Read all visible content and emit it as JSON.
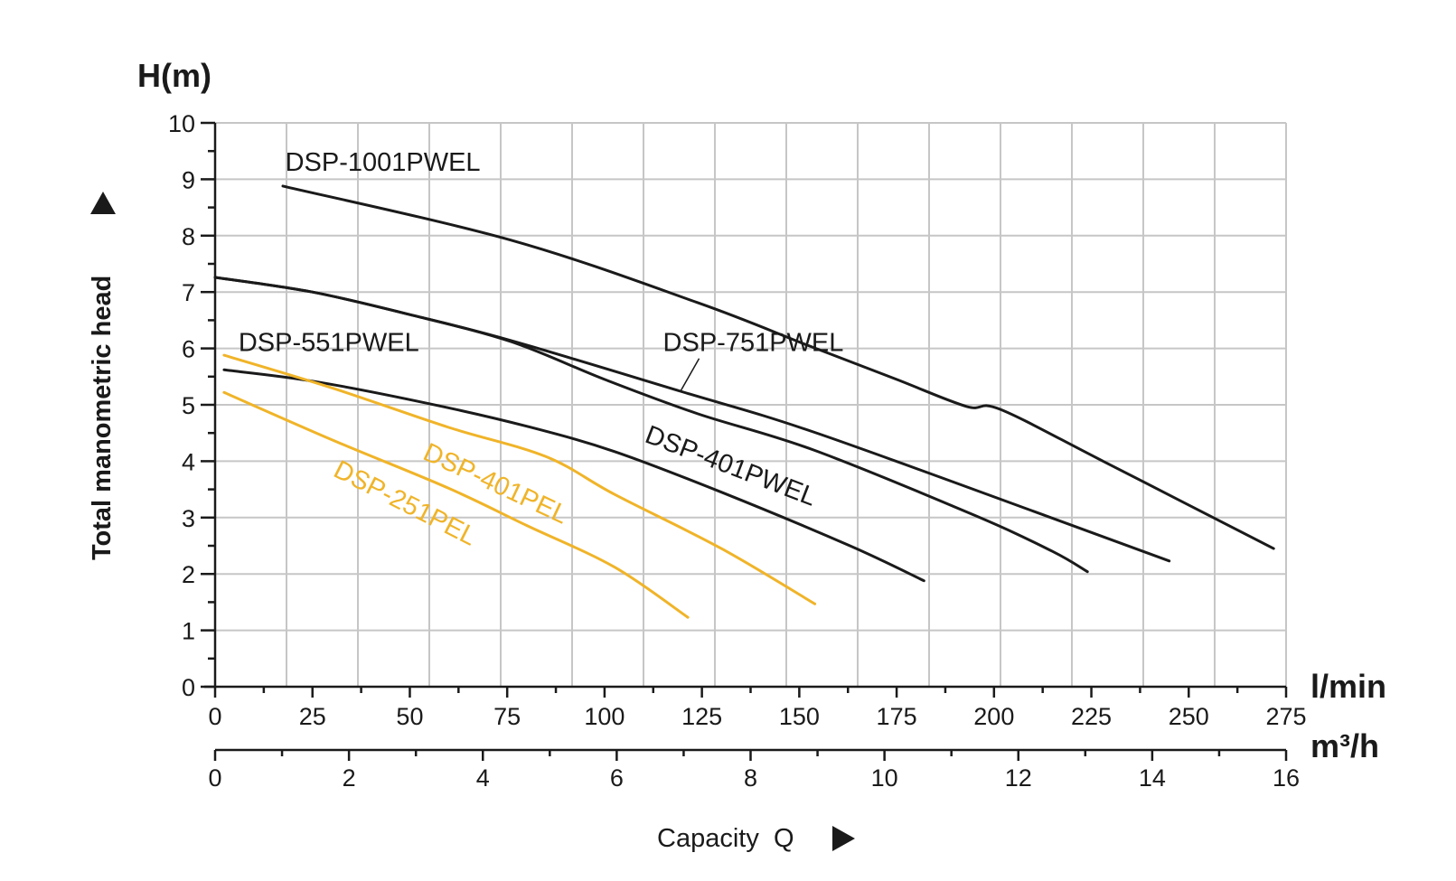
{
  "chart_data": {
    "type": "line",
    "title": "",
    "y_unit_label": "H(m)",
    "ylabel": "Total manometric head",
    "xlabel": "Capacity  Q",
    "x_unit_primary": "l/min",
    "x_unit_secondary": "m³/h",
    "xlim": [
      0,
      275
    ],
    "ylim": [
      0,
      10
    ],
    "x_secondary_lim": [
      0,
      16
    ],
    "grid": true,
    "grid_x_step": 18.333,
    "x_ticks": [
      "0",
      "25",
      "50",
      "75",
      "100",
      "125",
      "150",
      "175",
      "200",
      "225",
      "250",
      "275"
    ],
    "x_secondary_ticks": [
      "0",
      "2",
      "4",
      "6",
      "8",
      "10",
      "12",
      "14",
      "16"
    ],
    "y_ticks": [
      "0",
      "1",
      "2",
      "3",
      "4",
      "5",
      "6",
      "7",
      "8",
      "9",
      "10"
    ],
    "series": [
      {
        "name": "DSP-1001PWEL",
        "color": "#1a1a1a",
        "x": [
          17.4,
          76,
          124,
          152,
          175,
          193,
          201.6,
          228,
          271.8
        ],
        "y": [
          8.88,
          7.92,
          6.81,
          6.06,
          5.45,
          4.97,
          4.92,
          4.0,
          2.45
        ]
      },
      {
        "name": "DSP-751PWEL",
        "color": "#1a1a1a",
        "x": [
          0,
          25,
          50,
          76,
          119.5,
          153.6,
          213,
          245
        ],
        "y": [
          7.26,
          7.0,
          6.6,
          6.14,
          5.24,
          4.52,
          3.04,
          2.23
        ]
      },
      {
        "name": "DSP-551PWEL",
        "color": "#1a1a1a",
        "x": [
          0,
          25,
          50,
          76,
          100,
          124,
          153.6,
          195,
          215,
          224
        ],
        "y": [
          7.26,
          7.0,
          6.6,
          6.12,
          5.45,
          4.84,
          4.2,
          3.04,
          2.4,
          2.04
        ]
      },
      {
        "name": "DSP-401PWEL",
        "color": "#1a1a1a",
        "x": [
          2.3,
          25,
          55,
          80,
          102.6,
          130,
          163,
          182
        ],
        "y": [
          5.62,
          5.42,
          5.02,
          4.62,
          4.17,
          3.45,
          2.5,
          1.88
        ]
      },
      {
        "name": "DSP-401PEL",
        "color": "#F0B429",
        "x": [
          2.3,
          30,
          60,
          85,
          102.6,
          130,
          154
        ],
        "y": [
          5.88,
          5.3,
          4.6,
          4.08,
          3.41,
          2.45,
          1.47
        ]
      },
      {
        "name": "DSP-251PEL",
        "color": "#F0B429",
        "x": [
          2.3,
          30,
          60,
          80,
          102.6,
          121.4
        ],
        "y": [
          5.22,
          4.38,
          3.52,
          2.86,
          2.12,
          1.23
        ]
      }
    ],
    "annotations": [
      {
        "text": "DSP-1001PWEL",
        "x": 18,
        "y": 9.15,
        "rotate": 0,
        "color": "#1a1a1a"
      },
      {
        "text": "DSP-751PWEL",
        "x": 115,
        "y": 5.95,
        "rotate": 0,
        "color": "#1a1a1a",
        "leader_to": [
          119.5,
          5.24
        ]
      },
      {
        "text": "DSP-551PWEL",
        "x": 6,
        "y": 5.95,
        "rotate": 0,
        "color": "#1a1a1a"
      },
      {
        "text": "DSP-401PWEL",
        "x": 110,
        "y": 4.35,
        "rotate": 21,
        "color": "#1a1a1a"
      },
      {
        "text": "DSP-401PEL",
        "x": 53,
        "y": 4.05,
        "rotate": 25,
        "color": "#F0B429"
      },
      {
        "text": "DSP-251PEL",
        "x": 30,
        "y": 3.75,
        "rotate": 27,
        "color": "#F0B429"
      }
    ]
  }
}
